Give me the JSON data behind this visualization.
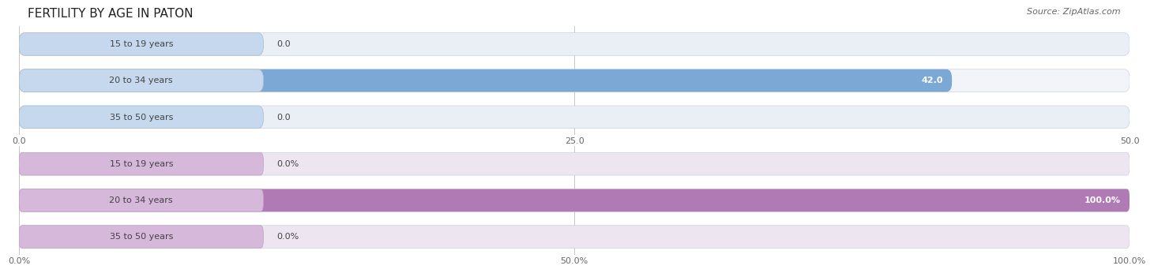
{
  "title": "FERTILITY BY AGE IN PATON",
  "source": "Source: ZipAtlas.com",
  "background_color": "#ffffff",
  "top_chart": {
    "categories": [
      "15 to 19 years",
      "20 to 34 years",
      "35 to 50 years"
    ],
    "values": [
      0.0,
      42.0,
      0.0
    ],
    "max_val": 50.0,
    "xticks": [
      0.0,
      25.0,
      50.0
    ],
    "xtick_labels": [
      "0.0",
      "25.0",
      "50.0"
    ],
    "bar_fill_color": "#7ca8d5",
    "bar_bg_color": "#dce6f2",
    "label_pill_color": "#c5d8ee",
    "row_bg_even": "#eaeef5",
    "row_bg_odd": "#f2f4f9",
    "value_labels": [
      "0.0",
      "42.0",
      "0.0"
    ]
  },
  "bottom_chart": {
    "categories": [
      "15 to 19 years",
      "20 to 34 years",
      "35 to 50 years"
    ],
    "values": [
      0.0,
      100.0,
      0.0
    ],
    "max_val": 100.0,
    "xticks": [
      0.0,
      50.0,
      100.0
    ],
    "xtick_labels": [
      "0.0%",
      "50.0%",
      "100.0%"
    ],
    "bar_fill_color": "#b07ab5",
    "bar_bg_color": "#e8d5ec",
    "label_pill_color": "#d5b8da",
    "row_bg_even": "#ede5f0",
    "row_bg_odd": "#f4eff5",
    "value_labels": [
      "0.0%",
      "100.0%",
      "0.0%"
    ]
  },
  "label_fontsize": 8.0,
  "value_fontsize": 8.0,
  "title_fontsize": 11,
  "source_fontsize": 8,
  "label_color": "#444444",
  "grid_color": "#bbbbbb",
  "tick_color": "#666666"
}
